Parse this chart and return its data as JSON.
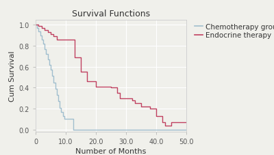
{
  "title": "Survival Functions",
  "xlabel": "Number of Months",
  "ylabel": "Cum Survival",
  "xlim": [
    0,
    50
  ],
  "ylim": [
    -0.02,
    1.05
  ],
  "xticks": [
    0,
    10.0,
    20.0,
    30.0,
    40.0,
    50.0
  ],
  "xtick_labels": [
    "0",
    "10.0",
    "20.0",
    "30.0",
    "40.0",
    "50.0"
  ],
  "yticks": [
    0.0,
    0.2,
    0.4,
    0.6,
    0.8,
    1.0
  ],
  "ytick_labels": [
    "0.0",
    "0.2",
    "0.4",
    "0.6",
    "0.8",
    "1.0"
  ],
  "background_color": "#f0f0eb",
  "grid_color": "#ffffff",
  "chemo_color": "#a0bece",
  "endo_color": "#c04060",
  "chemo_times": [
    0,
    0.5,
    1,
    1.5,
    2,
    2.5,
    3,
    3.5,
    4,
    4.5,
    5,
    5.5,
    6,
    6.5,
    7,
    7.5,
    8,
    8.5,
    9,
    9.5,
    10,
    10.5,
    11,
    11.5,
    12,
    12.5,
    13,
    50
  ],
  "chemo_surv": [
    1.0,
    0.97,
    0.94,
    0.9,
    0.86,
    0.82,
    0.77,
    0.72,
    0.67,
    0.62,
    0.57,
    0.51,
    0.45,
    0.39,
    0.33,
    0.27,
    0.21,
    0.17,
    0.13,
    0.1,
    0.1,
    0.1,
    0.1,
    0.1,
    0.1,
    0.0,
    0.0,
    0.0
  ],
  "endo_times": [
    0,
    1,
    2,
    3,
    4,
    5,
    6,
    7,
    8,
    9,
    10,
    11,
    12,
    13,
    14,
    15,
    17,
    19,
    20,
    22,
    24,
    25,
    27,
    28,
    30,
    32,
    33,
    35,
    38,
    40,
    42,
    43,
    45,
    50
  ],
  "endo_surv": [
    1.0,
    0.99,
    0.97,
    0.95,
    0.93,
    0.91,
    0.89,
    0.86,
    0.86,
    0.86,
    0.86,
    0.86,
    0.86,
    0.69,
    0.69,
    0.55,
    0.46,
    0.46,
    0.41,
    0.41,
    0.41,
    0.4,
    0.35,
    0.3,
    0.3,
    0.28,
    0.25,
    0.22,
    0.2,
    0.13,
    0.07,
    0.04,
    0.07,
    0.07
  ],
  "legend_labels": [
    "Chemotherapy group",
    "Endocrine therapy group"
  ],
  "title_fontsize": 9,
  "label_fontsize": 8,
  "tick_fontsize": 7,
  "legend_fontsize": 7.5
}
